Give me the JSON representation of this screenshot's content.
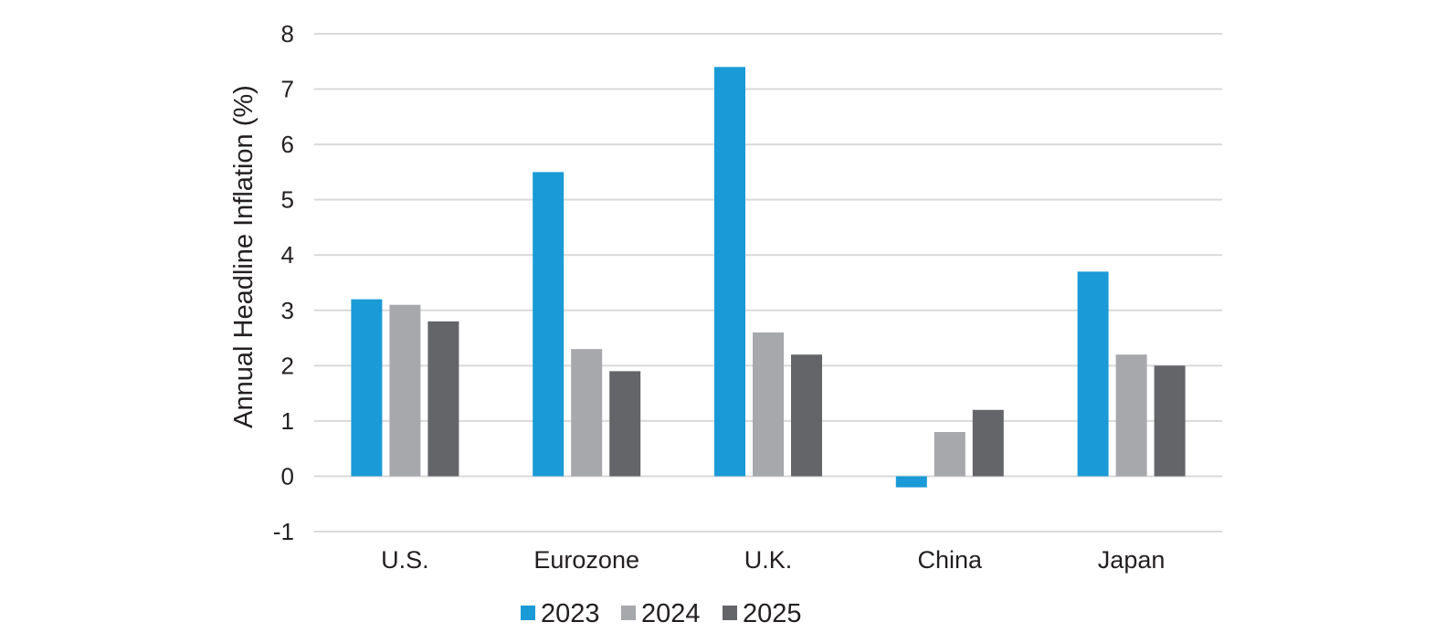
{
  "chart_data": {
    "type": "bar",
    "categories": [
      "U.S.",
      "Eurozone",
      "U.K.",
      "China",
      "Japan"
    ],
    "series": [
      {
        "name": "2023",
        "color": "#1a9ad6",
        "values": [
          3.2,
          5.5,
          7.4,
          -0.2,
          3.7
        ]
      },
      {
        "name": "2024",
        "color": "#a6a8ab",
        "values": [
          3.1,
          2.3,
          2.6,
          0.8,
          2.2
        ]
      },
      {
        "name": "2025",
        "color": "#636569",
        "values": [
          2.8,
          1.9,
          2.2,
          1.2,
          2.0
        ]
      }
    ],
    "ylabel": "Annual Headline Inflation (%)",
    "xlabel": "",
    "ylim": [
      -1,
      8
    ],
    "yticks": [
      "8",
      "7",
      "6",
      "5",
      "4",
      "3",
      "2",
      "1",
      "0",
      "-1"
    ],
    "grid": true,
    "legend_position": "bottom-center"
  }
}
